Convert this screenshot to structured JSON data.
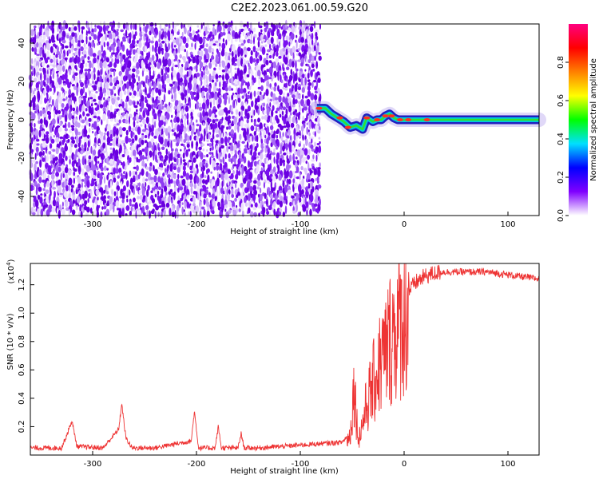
{
  "title": "C2E2.2023.061.00.59.G20",
  "chart_data": [
    {
      "type": "heatmap",
      "title": "C2E2.2023.061.00.59.G20",
      "xlabel": "Height of straight line (km)",
      "ylabel": "Frequency (Hz)",
      "xlim": [
        -360,
        130
      ],
      "ylim": [
        -50,
        50
      ],
      "x_ticks": [
        -300,
        -200,
        -100,
        0,
        100
      ],
      "y_ticks": [
        -40,
        -20,
        0,
        20,
        40
      ],
      "noise_region_x": [
        -360,
        -83
      ],
      "signal_track": {
        "x": [
          -84,
          -76,
          -70,
          -64,
          -58,
          -52,
          -46,
          -40,
          -36,
          -30,
          -26,
          -22,
          -18,
          -14,
          -10,
          -6,
          0,
          20,
          60,
          100,
          130
        ],
        "y": [
          6,
          6,
          3,
          1,
          -1,
          -4,
          -3,
          -5,
          1,
          -1,
          0,
          0,
          2,
          3,
          1,
          0,
          0,
          0,
          0,
          0,
          0
        ]
      },
      "colorbar": {
        "label": "Normalized spectral amplitude",
        "range": [
          0.0,
          1.0
        ],
        "ticks": [
          "0.0",
          "0.2",
          "0.4",
          "0.6",
          "0.8"
        ],
        "colors": [
          "#ffffff",
          "#8000ff",
          "#0000ff",
          "#00e0ff",
          "#00ff00",
          "#ffff00",
          "#ff8000",
          "#ff0000",
          "#ff0080"
        ]
      },
      "grid": false
    },
    {
      "type": "line",
      "xlabel": "Height of straight line (km)",
      "ylabel": "SNR (10 * v/v)",
      "y_multiplier": "(x10",
      "y_multiplier_exp": "4",
      "y_multiplier_close": ")",
      "xlim": [
        -360,
        130
      ],
      "ylim": [
        0.0,
        1.35
      ],
      "x_ticks": [
        -300,
        -200,
        -100,
        0,
        100
      ],
      "y_ticks": [
        "0.2",
        "0.4",
        "0.6",
        "0.8",
        "1.0",
        "1.2"
      ],
      "y_tick_values": [
        0.2,
        0.4,
        0.6,
        0.8,
        1.0,
        1.2
      ],
      "series_color": "#ee3333",
      "envelope": {
        "x": [
          -360,
          -330,
          -325,
          -320,
          -315,
          -290,
          -275,
          -272,
          -268,
          -262,
          -240,
          -205,
          -202,
          -198,
          -182,
          -179,
          -176,
          -160,
          -157,
          -154,
          -140,
          -120,
          -100,
          -80,
          -60,
          -52,
          -48,
          -46,
          -44,
          -40,
          -36,
          -30,
          -24,
          -18,
          -12,
          -6,
          0,
          6,
          12,
          18,
          24,
          30,
          36,
          40,
          50,
          60,
          70,
          80,
          90,
          100,
          110,
          120,
          130
        ],
        "y": [
          0.05,
          0.05,
          0.14,
          0.24,
          0.06,
          0.05,
          0.18,
          0.36,
          0.12,
          0.05,
          0.05,
          0.1,
          0.31,
          0.05,
          0.05,
          0.2,
          0.05,
          0.05,
          0.15,
          0.05,
          0.05,
          0.06,
          0.07,
          0.08,
          0.09,
          0.15,
          0.56,
          0.3,
          0.12,
          0.25,
          0.4,
          0.55,
          0.7,
          0.8,
          0.95,
          1.0,
          1.1,
          1.17,
          1.22,
          1.25,
          1.27,
          1.28,
          1.29,
          1.29,
          1.29,
          1.29,
          1.29,
          1.29,
          1.28,
          1.27,
          1.26,
          1.25,
          1.24
        ]
      }
    }
  ]
}
